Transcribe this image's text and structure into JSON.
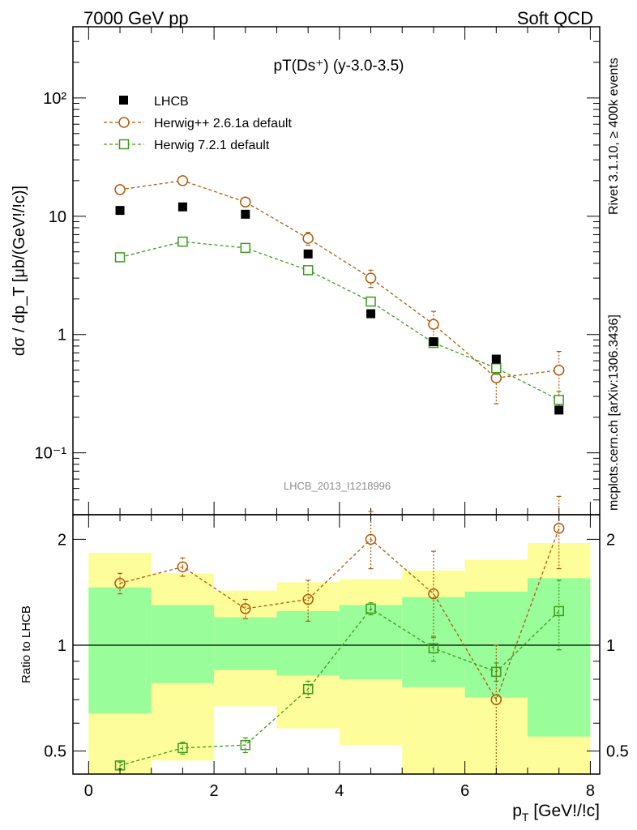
{
  "header": {
    "left": "7000 GeV pp",
    "right": "Soft QCD"
  },
  "side_labels": {
    "top": "Rivet 3.1.10, ≥ 400k events",
    "bottom": "mcplots.cern.ch [arXiv:1306.3436]"
  },
  "chart_data": [
    {
      "type": "scatter",
      "panel": "main",
      "title": "pT(Ds⁺) (y-3.0-3.5)",
      "xlabel": "p_T [GeV!/!c]",
      "ylabel": "dσ / dp_T [μb/(GeV!/!c)]",
      "yscale": "log",
      "xlim": [
        -0.25,
        8.15
      ],
      "ylim": [
        0.03,
        400
      ],
      "y_tick_labels": [
        "10⁻¹",
        "1",
        "10",
        "10²"
      ],
      "annotation": "LHCB_2013_I1218996",
      "legend_position": "top-left",
      "x": [
        0.5,
        1.5,
        2.5,
        3.5,
        4.5,
        5.5,
        6.5,
        7.5
      ],
      "series": [
        {
          "name": "LHCB",
          "style": "square-filled",
          "color": "#000000",
          "values": [
            11.2,
            12.0,
            10.4,
            4.8,
            1.5,
            0.87,
            0.62,
            0.23
          ]
        },
        {
          "name": "Herwig++ 2.6.1a default",
          "style": "circle-dashed",
          "color": "#b05a0a",
          "values": [
            16.8,
            20.0,
            13.2,
            6.5,
            3.0,
            1.22,
            0.43,
            0.5
          ],
          "errors": [
            0.5,
            0.7,
            0.7,
            0.8,
            0.5,
            0.35,
            0.17,
            0.22
          ]
        },
        {
          "name": "Herwig 7.2.1 default",
          "style": "square-dashed",
          "color": "#3d9a1c",
          "values": [
            4.5,
            6.1,
            5.4,
            3.5,
            1.9,
            0.85,
            0.52,
            0.28
          ],
          "errors": [
            0.1,
            0.15,
            0.12,
            0.1,
            0.1,
            0.05,
            0.06,
            0.05
          ]
        }
      ]
    },
    {
      "type": "scatter",
      "panel": "ratio",
      "ylabel": "Ratio to LHCB",
      "xlabel": "p_T [GeV!/!c]",
      "yscale": "log",
      "xlim": [
        -0.25,
        8.15
      ],
      "ylim": [
        0.43,
        2.35
      ],
      "x_ticks": [
        0,
        2,
        4,
        6,
        8
      ],
      "y_ticks": [
        0.5,
        1,
        2
      ],
      "bands": {
        "edges": [
          0,
          1,
          2,
          3,
          4,
          5,
          6,
          7,
          8
        ],
        "yellow_low": [
          0.43,
          0.47,
          0.67,
          0.58,
          0.52,
          0.41,
          0.43,
          0.43
        ],
        "yellow_high": [
          1.83,
          1.6,
          1.43,
          1.51,
          1.54,
          1.63,
          1.75,
          1.95
        ],
        "green_low": [
          0.64,
          0.78,
          0.85,
          0.82,
          0.8,
          0.76,
          0.71,
          0.55
        ],
        "green_high": [
          1.46,
          1.3,
          1.2,
          1.25,
          1.3,
          1.37,
          1.42,
          1.55
        ]
      },
      "series": [
        {
          "name": "Herwig++ 2.6.1a default",
          "color": "#b05a0a",
          "values": [
            1.5,
            1.67,
            1.27,
            1.35,
            2.0,
            1.4,
            0.7,
            2.15
          ],
          "errors_low": [
            0.1,
            0.1,
            0.08,
            0.18,
            0.35,
            0.35,
            0.4,
            0.5
          ],
          "errors_high": [
            0.1,
            0.1,
            0.08,
            0.18,
            0.4,
            0.45,
            0.3,
            0.5
          ]
        },
        {
          "name": "Herwig 7.2.1 default",
          "color": "#3d9a1c",
          "values": [
            0.455,
            0.51,
            0.52,
            0.75,
            1.27,
            0.98,
            0.84,
            1.25
          ],
          "errors_low": [
            0.01,
            0.02,
            0.025,
            0.04,
            0.05,
            0.08,
            0.05,
            0.28
          ],
          "errors_high": [
            0.01,
            0.02,
            0.025,
            0.04,
            0.05,
            0.08,
            0.05,
            0.28
          ]
        }
      ],
      "reference_line": 1
    }
  ]
}
